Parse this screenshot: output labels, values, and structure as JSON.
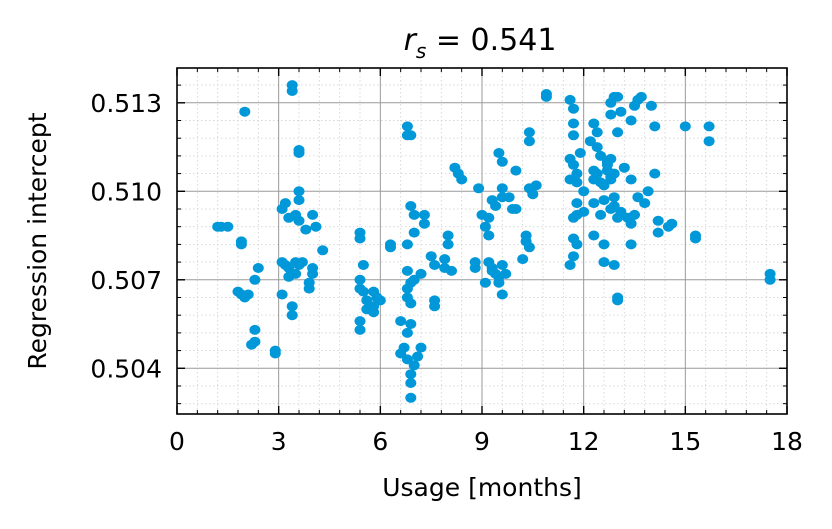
{
  "chart_data": {
    "type": "scatter",
    "title": {
      "symbol": "r",
      "subscript": "s",
      "rest": " = 0.541"
    },
    "xlabel": "Usage [months]",
    "ylabel": "Regression intercept",
    "xlim": [
      0,
      18
    ],
    "ylim": [
      0.50245,
      0.51418
    ],
    "xticks": [
      {
        "value": 0,
        "label": "0"
      },
      {
        "value": 3,
        "label": "3"
      },
      {
        "value": 6,
        "label": "6"
      },
      {
        "value": 9,
        "label": "9"
      },
      {
        "value": 12,
        "label": "12"
      },
      {
        "value": 15,
        "label": "15"
      },
      {
        "value": 18,
        "label": "18"
      }
    ],
    "yticks": [
      {
        "value": 0.504,
        "label": "0.504"
      },
      {
        "value": 0.507,
        "label": "0.507"
      },
      {
        "value": 0.51,
        "label": "0.510"
      },
      {
        "value": 0.513,
        "label": "0.513"
      }
    ],
    "grid": true,
    "marker_color": "#0098d8",
    "points": [
      [
        1.2,
        0.5088
      ],
      [
        1.3,
        0.5088
      ],
      [
        1.5,
        0.5088
      ],
      [
        1.9,
        0.5083
      ],
      [
        1.9,
        0.5082
      ],
      [
        2.0,
        0.5127
      ],
      [
        1.8,
        0.5066
      ],
      [
        1.9,
        0.5065
      ],
      [
        2.0,
        0.5064
      ],
      [
        2.1,
        0.5065
      ],
      [
        2.3,
        0.507
      ],
      [
        2.4,
        0.5074
      ],
      [
        2.3,
        0.5053
      ],
      [
        2.3,
        0.5049
      ],
      [
        2.2,
        0.5048
      ],
      [
        2.9,
        0.5046
      ],
      [
        2.9,
        0.5045
      ],
      [
        3.1,
        0.5094
      ],
      [
        3.2,
        0.5096
      ],
      [
        3.3,
        0.5091
      ],
      [
        3.5,
        0.5092
      ],
      [
        3.6,
        0.509
      ],
      [
        3.1,
        0.5076
      ],
      [
        3.2,
        0.5075
      ],
      [
        3.3,
        0.5074
      ],
      [
        3.5,
        0.5076
      ],
      [
        3.6,
        0.5075
      ],
      [
        3.7,
        0.5076
      ],
      [
        3.3,
        0.5071
      ],
      [
        3.5,
        0.5072
      ],
      [
        3.1,
        0.5065
      ],
      [
        3.4,
        0.5061
      ],
      [
        3.4,
        0.5058
      ],
      [
        3.4,
        0.5136
      ],
      [
        3.4,
        0.5134
      ],
      [
        3.6,
        0.5114
      ],
      [
        3.6,
        0.5113
      ],
      [
        3.6,
        0.51
      ],
      [
        3.6,
        0.5097
      ],
      [
        3.8,
        0.5087
      ],
      [
        4.0,
        0.5092
      ],
      [
        4.1,
        0.5088
      ],
      [
        4.0,
        0.5074
      ],
      [
        4.0,
        0.5072
      ],
      [
        3.9,
        0.5069
      ],
      [
        3.9,
        0.5067
      ],
      [
        4.3,
        0.508
      ],
      [
        5.4,
        0.5086
      ],
      [
        5.4,
        0.5084
      ],
      [
        5.5,
        0.5075
      ],
      [
        5.4,
        0.507
      ],
      [
        5.4,
        0.5067
      ],
      [
        5.5,
        0.5066
      ],
      [
        5.6,
        0.5063
      ],
      [
        5.8,
        0.5066
      ],
      [
        5.9,
        0.5064
      ],
      [
        5.6,
        0.506
      ],
      [
        5.8,
        0.5061
      ],
      [
        5.8,
        0.5059
      ],
      [
        5.4,
        0.5056
      ],
      [
        5.4,
        0.5053
      ],
      [
        6.0,
        0.5063
      ],
      [
        6.3,
        0.5082
      ],
      [
        6.3,
        0.5081
      ],
      [
        6.8,
        0.5122
      ],
      [
        6.8,
        0.5119
      ],
      [
        6.9,
        0.5119
      ],
      [
        6.9,
        0.5095
      ],
      [
        7.0,
        0.5092
      ],
      [
        7.0,
        0.5086
      ],
      [
        6.8,
        0.5082
      ],
      [
        6.8,
        0.5073
      ],
      [
        6.9,
        0.5069
      ],
      [
        6.8,
        0.5067
      ],
      [
        7.0,
        0.507
      ],
      [
        7.2,
        0.5072
      ],
      [
        6.8,
        0.5064
      ],
      [
        6.9,
        0.5062
      ],
      [
        6.6,
        0.5056
      ],
      [
        6.9,
        0.5055
      ],
      [
        6.8,
        0.5052
      ],
      [
        7.2,
        0.5047
      ],
      [
        7.1,
        0.5044
      ],
      [
        6.8,
        0.5043
      ],
      [
        7.0,
        0.5041
      ],
      [
        6.9,
        0.5038
      ],
      [
        6.9,
        0.5035
      ],
      [
        6.9,
        0.503
      ],
      [
        7.3,
        0.5092
      ],
      [
        7.3,
        0.5089
      ],
      [
        6.7,
        0.5047
      ],
      [
        6.6,
        0.5045
      ],
      [
        7.5,
        0.5078
      ],
      [
        7.6,
        0.5075
      ],
      [
        7.9,
        0.5074
      ],
      [
        7.6,
        0.5063
      ],
      [
        7.6,
        0.5061
      ],
      [
        8.0,
        0.5085
      ],
      [
        8.0,
        0.5082
      ],
      [
        7.9,
        0.5077
      ],
      [
        8.1,
        0.5073
      ],
      [
        8.2,
        0.5108
      ],
      [
        8.3,
        0.5106
      ],
      [
        8.4,
        0.5104
      ],
      [
        8.9,
        0.5101
      ],
      [
        8.8,
        0.5076
      ],
      [
        8.8,
        0.5074
      ],
      [
        9.1,
        0.5069
      ],
      [
        9.0,
        0.5092
      ],
      [
        9.1,
        0.5088
      ],
      [
        9.2,
        0.5091
      ],
      [
        9.3,
        0.5097
      ],
      [
        9.4,
        0.5095
      ],
      [
        9.6,
        0.511
      ],
      [
        9.5,
        0.5113
      ],
      [
        9.6,
        0.5101
      ],
      [
        9.6,
        0.5098
      ],
      [
        9.2,
        0.5076
      ],
      [
        9.3,
        0.5074
      ],
      [
        9.4,
        0.5072
      ],
      [
        9.5,
        0.5071
      ],
      [
        9.6,
        0.5075
      ],
      [
        9.3,
        0.5073
      ],
      [
        9.5,
        0.5069
      ],
      [
        9.6,
        0.5065
      ],
      [
        9.7,
        0.5072
      ],
      [
        9.2,
        0.5085
      ],
      [
        9.8,
        0.5098
      ],
      [
        9.9,
        0.5094
      ],
      [
        10.0,
        0.5094
      ],
      [
        10.0,
        0.5107
      ],
      [
        10.2,
        0.5077
      ],
      [
        10.3,
        0.5085
      ],
      [
        10.3,
        0.5083
      ],
      [
        10.4,
        0.5101
      ],
      [
        10.5,
        0.5099
      ],
      [
        10.4,
        0.5081
      ],
      [
        10.6,
        0.5102
      ],
      [
        10.4,
        0.5117
      ],
      [
        10.4,
        0.512
      ],
      [
        10.9,
        0.5133
      ],
      [
        10.9,
        0.5132
      ],
      [
        11.6,
        0.5131
      ],
      [
        11.7,
        0.5128
      ],
      [
        11.7,
        0.5123
      ],
      [
        11.7,
        0.5119
      ],
      [
        11.6,
        0.5111
      ],
      [
        11.7,
        0.5109
      ],
      [
        11.8,
        0.5106
      ],
      [
        11.9,
        0.5113
      ],
      [
        11.6,
        0.5104
      ],
      [
        11.8,
        0.5103
      ],
      [
        12.0,
        0.51
      ],
      [
        11.8,
        0.5096
      ],
      [
        11.8,
        0.5092
      ],
      [
        11.7,
        0.5091
      ],
      [
        12.0,
        0.5093
      ],
      [
        11.7,
        0.5084
      ],
      [
        11.8,
        0.5082
      ],
      [
        11.7,
        0.5078
      ],
      [
        11.6,
        0.5075
      ],
      [
        12.2,
        0.5117
      ],
      [
        12.3,
        0.5123
      ],
      [
        12.4,
        0.512
      ],
      [
        12.4,
        0.5115
      ],
      [
        12.5,
        0.5112
      ],
      [
        12.3,
        0.5107
      ],
      [
        12.4,
        0.5106
      ],
      [
        12.3,
        0.5104
      ],
      [
        12.5,
        0.5103
      ],
      [
        12.6,
        0.5102
      ],
      [
        12.7,
        0.5109
      ],
      [
        12.7,
        0.5107
      ],
      [
        12.8,
        0.5105
      ],
      [
        12.8,
        0.5104
      ],
      [
        12.9,
        0.5106
      ],
      [
        12.6,
        0.5097
      ],
      [
        12.8,
        0.5094
      ],
      [
        12.3,
        0.5096
      ],
      [
        12.5,
        0.5092
      ],
      [
        12.3,
        0.5085
      ],
      [
        12.6,
        0.5082
      ],
      [
        12.7,
        0.511
      ],
      [
        12.8,
        0.5111
      ],
      [
        12.9,
        0.5132
      ],
      [
        13.0,
        0.5132
      ],
      [
        12.8,
        0.513
      ],
      [
        12.8,
        0.5126
      ],
      [
        13.1,
        0.5127
      ],
      [
        13.0,
        0.512
      ],
      [
        12.9,
        0.5098
      ],
      [
        12.9,
        0.5095
      ],
      [
        13.0,
        0.5091
      ],
      [
        13.1,
        0.5093
      ],
      [
        12.9,
        0.5075
      ],
      [
        12.6,
        0.5076
      ],
      [
        13.0,
        0.5064
      ],
      [
        13.0,
        0.5063
      ],
      [
        13.2,
        0.5108
      ],
      [
        13.4,
        0.5104
      ],
      [
        13.4,
        0.5124
      ],
      [
        13.5,
        0.5129
      ],
      [
        13.6,
        0.5131
      ],
      [
        13.7,
        0.5132
      ],
      [
        13.3,
        0.5091
      ],
      [
        13.4,
        0.5089
      ],
      [
        13.5,
        0.5092
      ],
      [
        13.6,
        0.5098
      ],
      [
        13.8,
        0.5096
      ],
      [
        13.9,
        0.51
      ],
      [
        13.4,
        0.5082
      ],
      [
        14.0,
        0.5129
      ],
      [
        14.1,
        0.5122
      ],
      [
        14.1,
        0.5106
      ],
      [
        14.2,
        0.509
      ],
      [
        14.2,
        0.5086
      ],
      [
        14.5,
        0.5088
      ],
      [
        14.6,
        0.5089
      ],
      [
        15.0,
        0.5122
      ],
      [
        15.3,
        0.5085
      ],
      [
        15.3,
        0.5084
      ],
      [
        15.7,
        0.5122
      ],
      [
        15.7,
        0.5117
      ],
      [
        17.5,
        0.5072
      ],
      [
        17.5,
        0.507
      ]
    ]
  }
}
